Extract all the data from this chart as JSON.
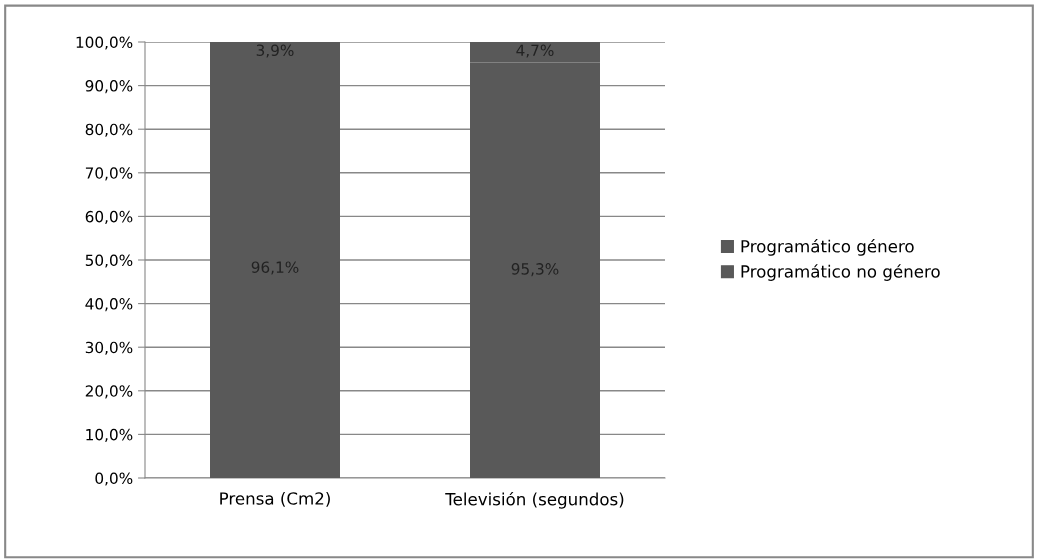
{
  "chart_data": {
    "type": "bar",
    "stacked": true,
    "categories": [
      "Prensa (Cm2)",
      "Televisión (segundos)"
    ],
    "series": [
      {
        "name": "Programático no género",
        "color": "#595959",
        "values": [
          96.1,
          95.3
        ],
        "value_labels": [
          "96,1%",
          "95,3%"
        ]
      },
      {
        "name": "Programático género",
        "color": "#595959",
        "values": [
          3.9,
          4.7
        ],
        "value_labels": [
          "3,9%",
          "4,7%"
        ]
      }
    ],
    "ylim": [
      0,
      100
    ],
    "yticks": [
      {
        "value": 0,
        "label": "0,0%"
      },
      {
        "value": 10,
        "label": "10,0%"
      },
      {
        "value": 20,
        "label": "20,0%"
      },
      {
        "value": 30,
        "label": "30,0%"
      },
      {
        "value": 40,
        "label": "40,0%"
      },
      {
        "value": 50,
        "label": "50,0%"
      },
      {
        "value": 60,
        "label": "60,0%"
      },
      {
        "value": 70,
        "label": "70,0%"
      },
      {
        "value": 80,
        "label": "80,0%"
      },
      {
        "value": 90,
        "label": "90,0%"
      },
      {
        "value": 100,
        "label": "100,0%"
      }
    ],
    "grid": "y",
    "legend": "right"
  }
}
